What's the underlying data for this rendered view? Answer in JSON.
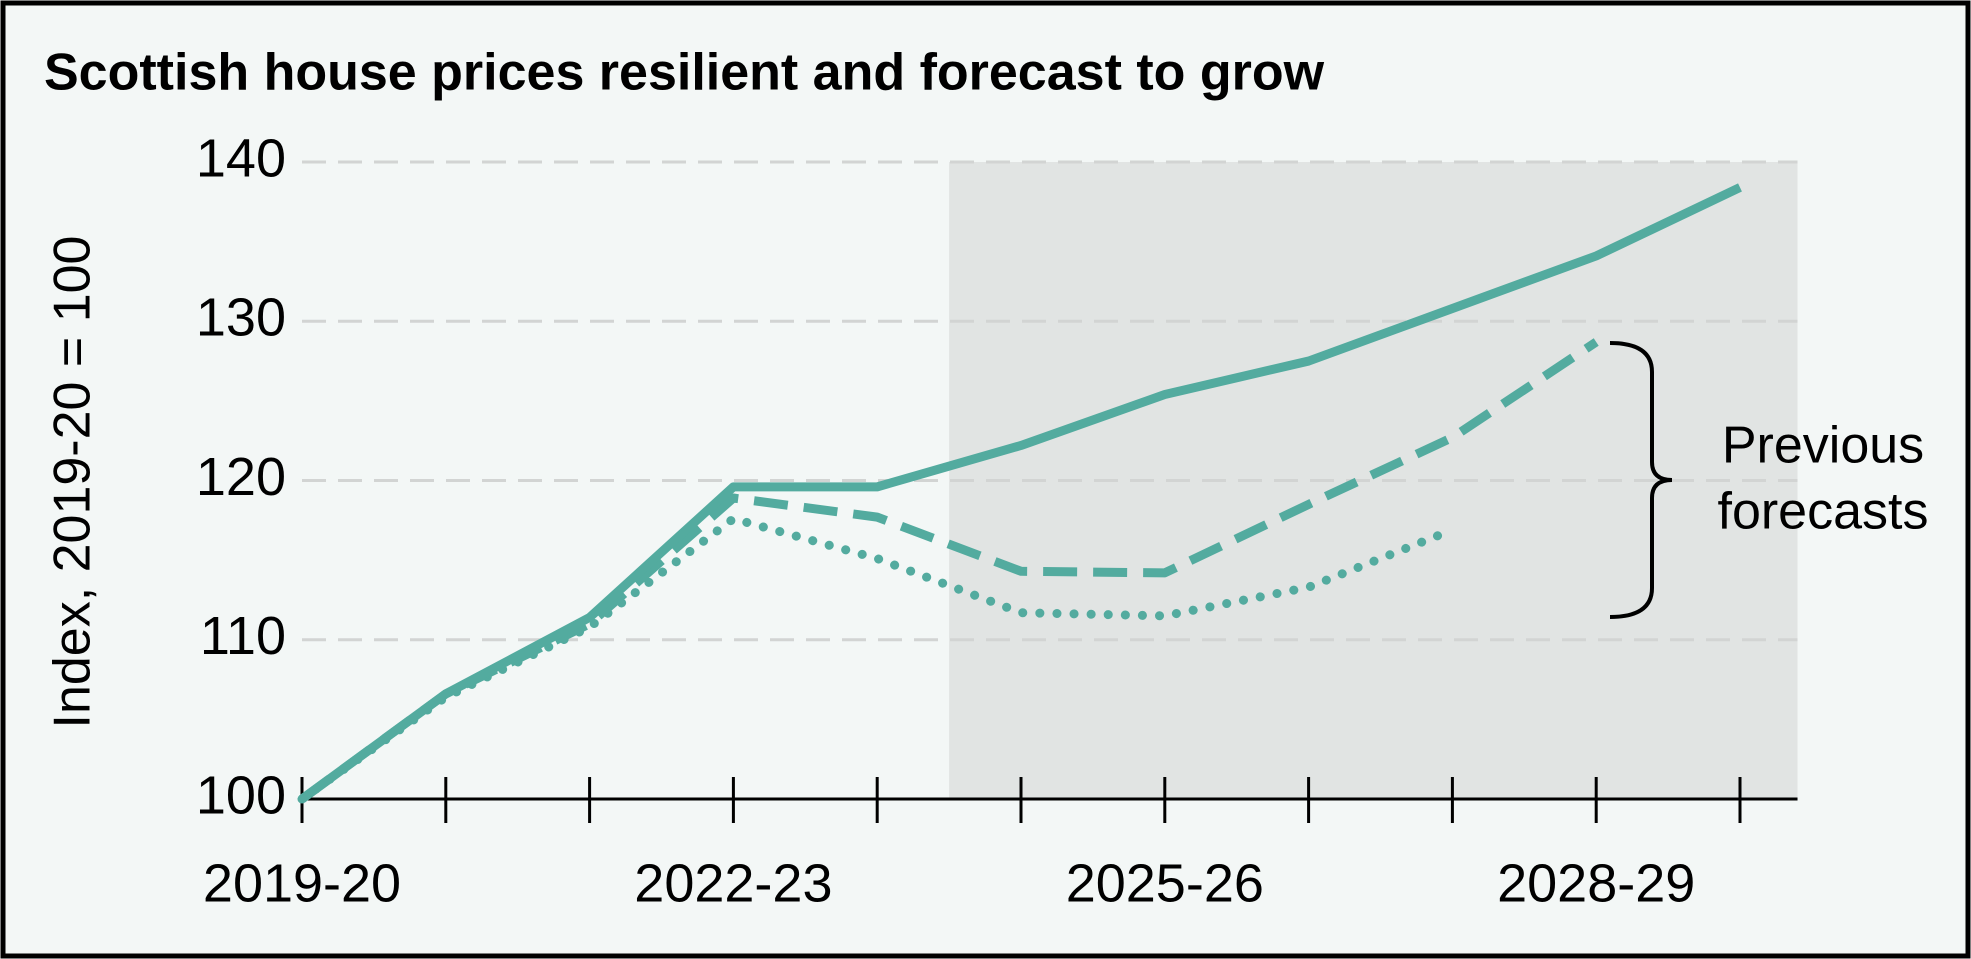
{
  "chart_data": {
    "type": "line",
    "title": "Scottish house prices resilient and forecast to grow",
    "y_label": "Index, 2019-20 = 100",
    "annotation": [
      "Previous",
      "forecasts"
    ],
    "categories": [
      "2019-20",
      null,
      null,
      "2022-23",
      null,
      null,
      "2025-26",
      null,
      null,
      "2028-29",
      null
    ],
    "series": [
      {
        "color": "#53ab9f",
        "style": "solid",
        "values": [
          100,
          106.6,
          111.4,
          119.6,
          119.6,
          122.2,
          125.4,
          127.5,
          130.8,
          134.1,
          138.4
        ]
      },
      {
        "color": "#53ab9f",
        "style": "dashed",
        "values": [
          100,
          106.6,
          111.0,
          118.9,
          117.7,
          114.3,
          114.2,
          118.5,
          122.7,
          128.7,
          null
        ]
      },
      {
        "color": "#53ab9f",
        "style": "dotted",
        "values": [
          100,
          106.4,
          110.8,
          117.6,
          115.1,
          111.7,
          111.5,
          113.3,
          116.9,
          null,
          null
        ]
      }
    ],
    "ylim": [
      100,
      140
    ],
    "yticks": [
      100,
      110,
      120,
      130,
      140
    ],
    "grid": true
  }
}
